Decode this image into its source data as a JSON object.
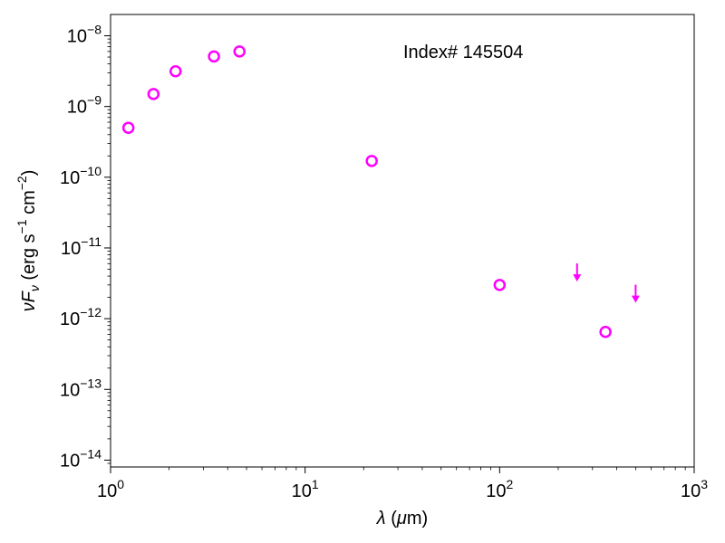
{
  "chart_data": {
    "type": "scatter",
    "title": "",
    "annotation": "Index# 145504",
    "xlabel": "λ (μm)",
    "ylabel": "νF_ν (erg s⁻¹ cm⁻²)",
    "x_scale": "log",
    "y_scale": "log",
    "xlim": [
      1,
      1000
    ],
    "ylim": [
      8e-15,
      2e-08
    ],
    "x_ticks": [
      {
        "value": 1,
        "base": "10",
        "exp": "0"
      },
      {
        "value": 10,
        "base": "10",
        "exp": "1"
      },
      {
        "value": 100,
        "base": "10",
        "exp": "2"
      },
      {
        "value": 1000,
        "base": "10",
        "exp": "3"
      }
    ],
    "y_ticks": [
      {
        "value": 1e-14,
        "base": "10",
        "exp": "−14"
      },
      {
        "value": 1e-13,
        "base": "10",
        "exp": "−13"
      },
      {
        "value": 1e-12,
        "base": "10",
        "exp": "−12"
      },
      {
        "value": 1e-11,
        "base": "10",
        "exp": "−11"
      },
      {
        "value": 1e-10,
        "base": "10",
        "exp": "−10"
      },
      {
        "value": 1e-09,
        "base": "10",
        "exp": "−9"
      },
      {
        "value": 1e-08,
        "base": "10",
        "exp": "−8"
      }
    ],
    "color": "#ff00ff",
    "points": [
      {
        "x": 1.235,
        "y": 5e-10
      },
      {
        "x": 1.662,
        "y": 1.5e-09
      },
      {
        "x": 2.159,
        "y": 3.15e-09
      },
      {
        "x": 3.4,
        "y": 5.1e-09
      },
      {
        "x": 4.6,
        "y": 6e-09
      },
      {
        "x": 22,
        "y": 1.7e-10
      },
      {
        "x": 100,
        "y": 3e-12
      },
      {
        "x": 350,
        "y": 6.5e-13
      }
    ],
    "upper_limits": [
      {
        "x": 250,
        "y": 4e-12
      },
      {
        "x": 500,
        "y": 2e-12
      }
    ]
  }
}
